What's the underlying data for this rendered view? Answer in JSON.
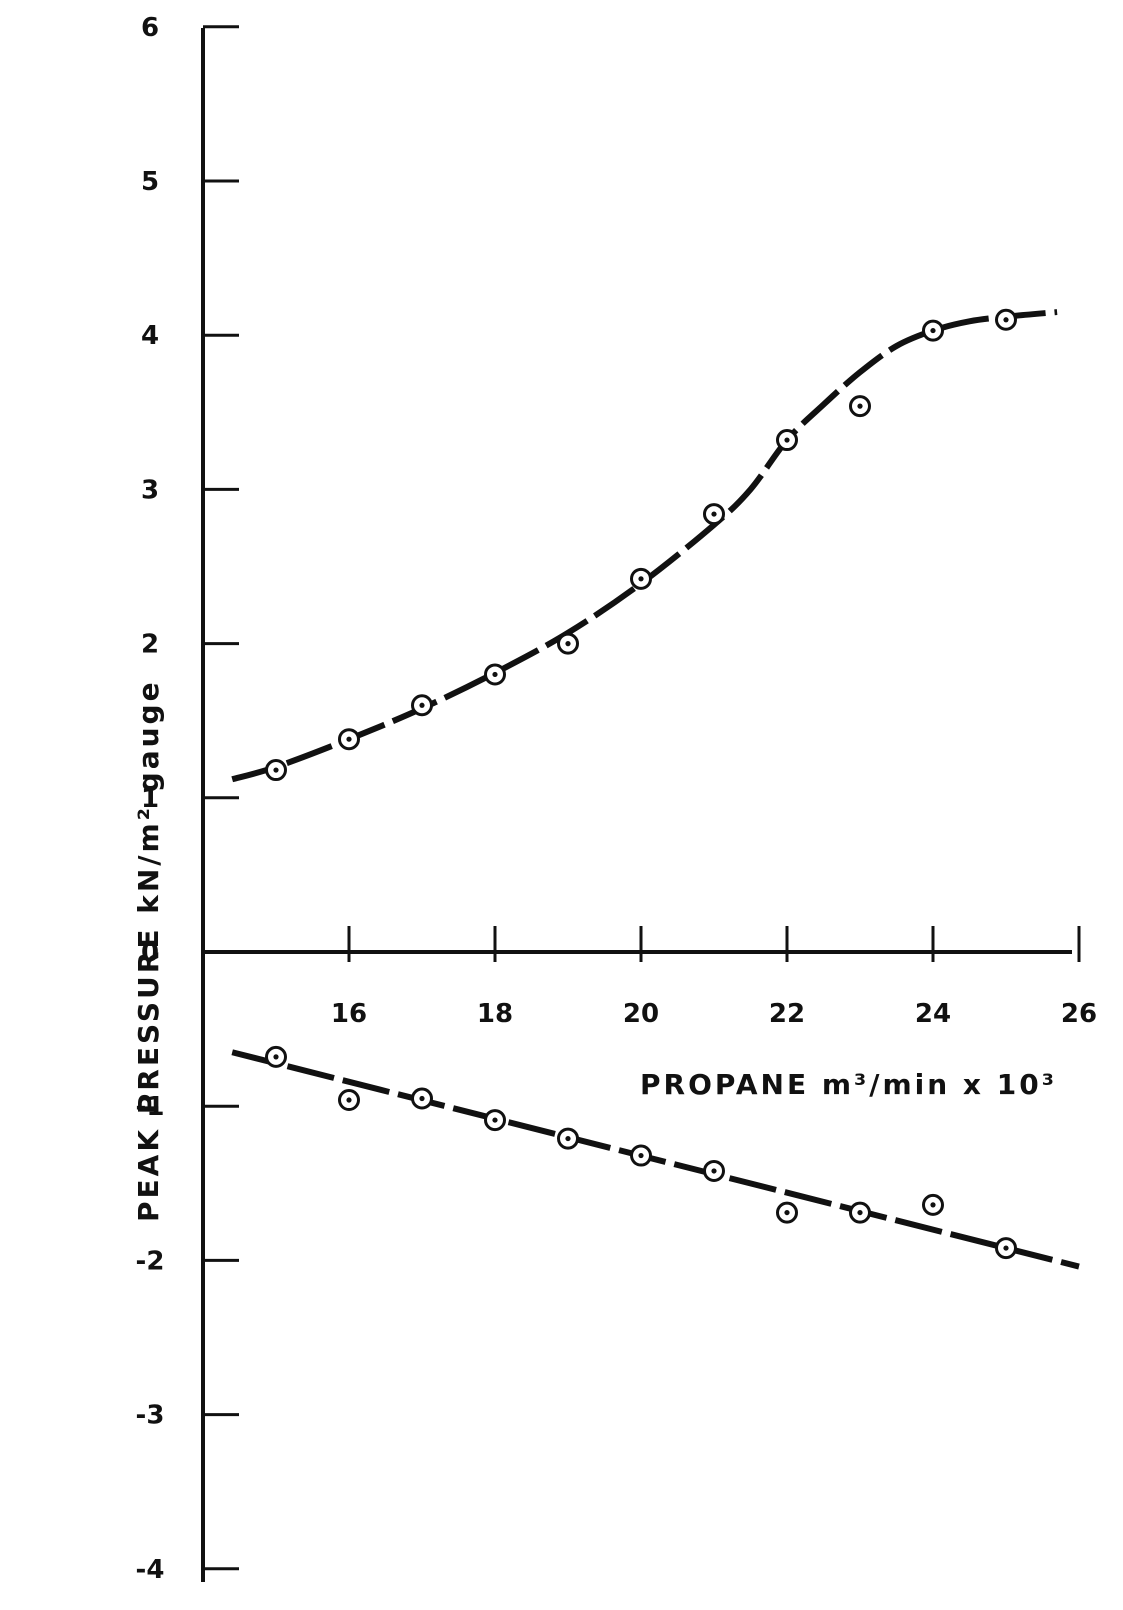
{
  "chart_data": {
    "type": "line",
    "xlabel": "PROPANE  m³/min x 10³",
    "ylabel": "PEAK  PRESSURE   kN/m² gauge",
    "xlim": [
      14,
      26
    ],
    "ylim": [
      -4,
      6
    ],
    "x_ticks": [
      {
        "value": 16,
        "label": "16"
      },
      {
        "value": 18,
        "label": "18"
      },
      {
        "value": 20,
        "label": "20"
      },
      {
        "value": 22,
        "label": "22"
      },
      {
        "value": 24,
        "label": "24"
      },
      {
        "value": 26,
        "label": "26"
      }
    ],
    "y_ticks": [
      {
        "value": 6,
        "label": "6"
      },
      {
        "value": 5,
        "label": "5"
      },
      {
        "value": 4,
        "label": "4"
      },
      {
        "value": 3,
        "label": "3"
      },
      {
        "value": 2,
        "label": "2"
      },
      {
        "value": 1,
        "label": "1"
      },
      {
        "value": 0,
        "label": "0"
      },
      {
        "value": -1,
        "label": "-1"
      },
      {
        "value": -2,
        "label": "-2"
      },
      {
        "value": -3,
        "label": "-3"
      },
      {
        "value": -4,
        "label": "-4"
      }
    ],
    "grid": false,
    "series": [
      {
        "points": [
          [
            15,
            1.18
          ],
          [
            16,
            1.38
          ],
          [
            17,
            1.6
          ],
          [
            18,
            1.8
          ],
          [
            19,
            2.0
          ],
          [
            20,
            2.42
          ],
          [
            21,
            2.84
          ],
          [
            22,
            3.32
          ],
          [
            23,
            3.54
          ],
          [
            24,
            4.03
          ],
          [
            25,
            4.1
          ]
        ],
        "fit": [
          [
            14.4,
            1.12
          ],
          [
            15,
            1.2
          ],
          [
            16,
            1.38
          ],
          [
            17,
            1.58
          ],
          [
            18,
            1.81
          ],
          [
            19,
            2.07
          ],
          [
            20,
            2.39
          ],
          [
            21,
            2.77
          ],
          [
            21.5,
            3.0
          ],
          [
            22,
            3.32
          ],
          [
            22.5,
            3.55
          ],
          [
            23,
            3.76
          ],
          [
            23.5,
            3.93
          ],
          [
            24,
            4.03
          ],
          [
            24.5,
            4.09
          ],
          [
            25,
            4.12
          ],
          [
            25.7,
            4.15
          ]
        ]
      },
      {
        "points": [
          [
            15,
            -0.68
          ],
          [
            16,
            -0.96
          ],
          [
            17,
            -0.95
          ],
          [
            18,
            -1.09
          ],
          [
            19,
            -1.21
          ],
          [
            20,
            -1.32
          ],
          [
            21,
            -1.42
          ],
          [
            22,
            -1.69
          ],
          [
            23,
            -1.69
          ],
          [
            24,
            -1.64
          ],
          [
            25,
            -1.92
          ]
        ],
        "fit": [
          [
            14.4,
            -0.65
          ],
          [
            26,
            -2.04
          ]
        ]
      }
    ]
  }
}
